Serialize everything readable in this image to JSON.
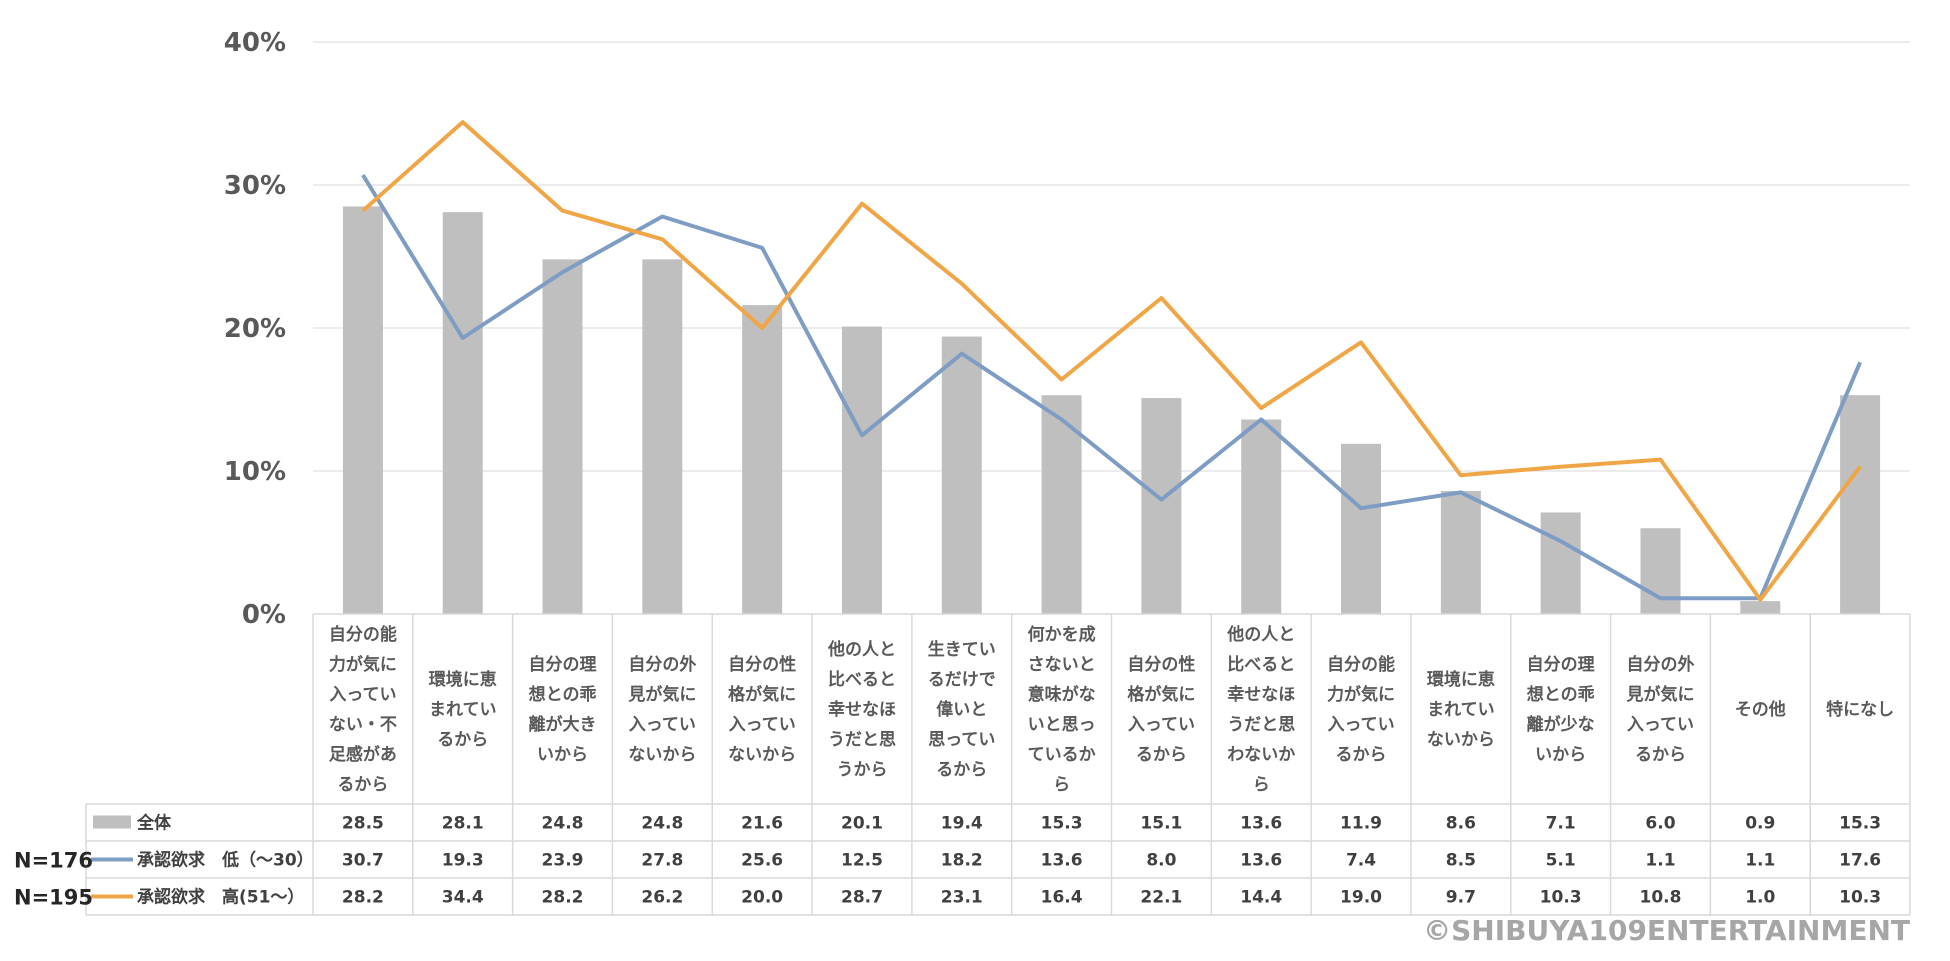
{
  "chart_data": {
    "type": "bar",
    "ylim": [
      0,
      40
    ],
    "y_ticks": [
      "0%",
      "10%",
      "20%",
      "30%",
      "40%"
    ],
    "grid": true,
    "categories": [
      "自分の能力が気に入っていない・不足感があるから",
      "環境に恵まれているから",
      "自分の理想との乖離が大きいから",
      "自分の外見が気に入っていないから",
      "自分の性格が気に入っていないから",
      "他の人と比べると幸せなほうだと思うから",
      "生きているだけで偉いと思っているから",
      "何かを成さないと意味がないと思っているから",
      "自分の性格が気に入っているから",
      "他の人と比べると幸せなほうだと思わないから",
      "自分の能力が気に入っているから",
      "環境に恵まれていないから",
      "自分の理想との乖離が少ないから",
      "自分の外見が気に入っているから",
      "その他",
      "特になし"
    ],
    "category_lines": [
      [
        "自分の能",
        "力が気に",
        "入ってい",
        "ない・不",
        "足感があ",
        "るから"
      ],
      [
        "環境に恵",
        "まれてい",
        "るから"
      ],
      [
        "自分の理",
        "想との乖",
        "離が大き",
        "いから"
      ],
      [
        "自分の外",
        "見が気に",
        "入ってい",
        "ないから"
      ],
      [
        "自分の性",
        "格が気に",
        "入ってい",
        "ないから"
      ],
      [
        "他の人と",
        "比べると",
        "幸せなほ",
        "うだと思",
        "うから"
      ],
      [
        "生きてい",
        "るだけで",
        "偉いと",
        "思ってい",
        "るから"
      ],
      [
        "何かを成",
        "さないと",
        "意味がな",
        "いと思っ",
        "ているか",
        "ら"
      ],
      [
        "自分の性",
        "格が気に",
        "入ってい",
        "るから"
      ],
      [
        "他の人と",
        "比べると",
        "幸せなほ",
        "うだと思",
        "わないか",
        "ら"
      ],
      [
        "自分の能",
        "力が気に",
        "入ってい",
        "るから"
      ],
      [
        "環境に恵",
        "まれてい",
        "ないから"
      ],
      [
        "自分の理",
        "想との乖",
        "離が少な",
        "いから"
      ],
      [
        "自分の外",
        "見が気に",
        "入ってい",
        "るから"
      ],
      [
        "その他"
      ],
      [
        "特になし"
      ]
    ],
    "series": [
      {
        "name": "全体",
        "type": "bar",
        "color": "#bfbfbf",
        "values": [
          28.5,
          28.1,
          24.8,
          24.8,
          21.6,
          20.1,
          19.4,
          15.3,
          15.1,
          13.6,
          11.9,
          8.6,
          7.1,
          6.0,
          0.9,
          15.3
        ],
        "labels": [
          "28.5",
          "28.1",
          "24.8",
          "24.8",
          "21.6",
          "20.1",
          "19.4",
          "15.3",
          "15.1",
          "13.6",
          "11.9",
          "8.6",
          "7.1",
          "6.0",
          "0.9",
          "15.3"
        ]
      },
      {
        "name": "承認欲求　低（〜30）",
        "type": "line",
        "color": "#7f9cc4",
        "n_label": "N=176",
        "values": [
          30.7,
          19.3,
          23.9,
          27.8,
          25.6,
          12.5,
          18.2,
          13.6,
          8.0,
          13.6,
          7.4,
          8.5,
          5.1,
          1.1,
          1.1,
          17.6
        ],
        "labels": [
          "30.7",
          "19.3",
          "23.9",
          "27.8",
          "25.6",
          "12.5",
          "18.2",
          "13.6",
          "8.0",
          "13.6",
          "7.4",
          "8.5",
          "5.1",
          "1.1",
          "1.1",
          "17.6"
        ]
      },
      {
        "name": "承認欲求　高(51〜）",
        "type": "line",
        "color": "#f0a646",
        "n_label": "N=195",
        "values": [
          28.2,
          34.4,
          28.2,
          26.2,
          20.0,
          28.7,
          23.1,
          16.4,
          22.1,
          14.4,
          19.0,
          9.7,
          10.3,
          10.8,
          1.0,
          10.3
        ],
        "labels": [
          "28.2",
          "34.4",
          "28.2",
          "26.2",
          "20.0",
          "28.7",
          "23.1",
          "16.4",
          "22.1",
          "14.4",
          "19.0",
          "9.7",
          "10.3",
          "10.8",
          "1.0",
          "10.3"
        ]
      }
    ]
  },
  "copyright": "©SHIBUYA109ENTERTAINMENT",
  "colors": {
    "grid": "#d9d9d9",
    "table_border": "#d9d9d9",
    "tick_text": "#595959"
  }
}
